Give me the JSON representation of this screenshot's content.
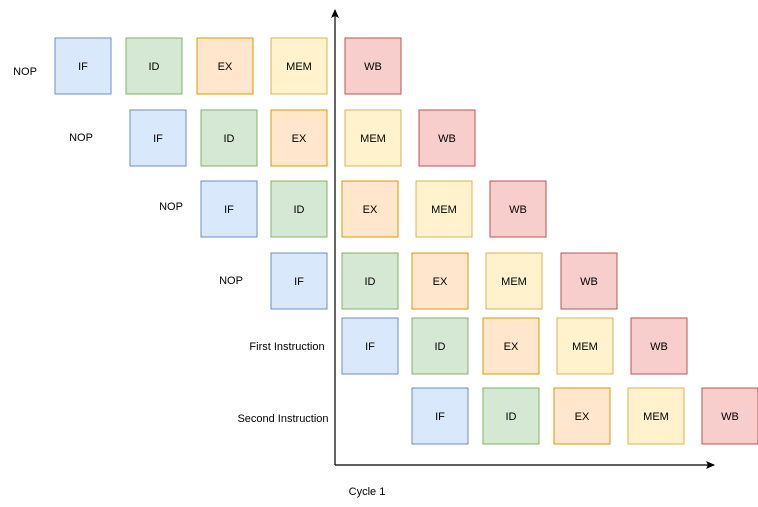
{
  "stage_styles": {
    "IF": {
      "fill": "#dae8fc",
      "stroke": "#6c8ebf"
    },
    "ID": {
      "fill": "#d5e8d4",
      "stroke": "#82b366"
    },
    "EX": {
      "fill": "#ffe6cc",
      "stroke": "#d79b00"
    },
    "MEM": {
      "fill": "#fff2cc",
      "stroke": "#d6b656"
    },
    "WB": {
      "fill": "#f8cecc",
      "stroke": "#b85450"
    }
  },
  "rows": [
    {
      "label": "NOP",
      "stages": [
        "IF",
        "ID",
        "EX",
        "MEM",
        "WB"
      ]
    },
    {
      "label": "NOP",
      "stages": [
        "IF",
        "ID",
        "EX",
        "MEM",
        "WB"
      ]
    },
    {
      "label": "NOP",
      "stages": [
        "IF",
        "ID",
        "EX",
        "MEM",
        "WB"
      ]
    },
    {
      "label": "NOP",
      "stages": [
        "IF",
        "ID",
        "EX",
        "MEM",
        "WB"
      ]
    },
    {
      "label": "First Instruction",
      "stages": [
        "IF",
        "ID",
        "EX",
        "MEM",
        "WB"
      ]
    },
    {
      "label": "Second Instruction",
      "stages": [
        "IF",
        "ID",
        "EX",
        "MEM",
        "WB"
      ]
    }
  ],
  "x_axis_label": "Cycle 1"
}
